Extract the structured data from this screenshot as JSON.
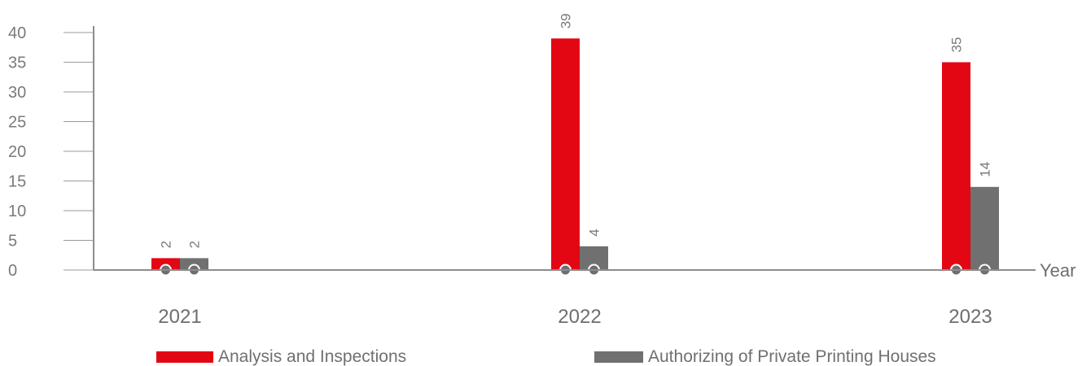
{
  "chart_data": {
    "type": "bar",
    "categories": [
      "2021",
      "2022",
      "2023"
    ],
    "series": [
      {
        "name": "Analysis and Inspections",
        "values": [
          2,
          39,
          35
        ],
        "color": "#e30613"
      },
      {
        "name": "Authorizing of Private Printing Houses",
        "values": [
          2,
          4,
          14
        ],
        "color": "#707070"
      }
    ],
    "xlabel": "Year",
    "ylabel": "",
    "ylim": [
      0,
      40
    ],
    "yticks": [
      0,
      5,
      10,
      15,
      20,
      25,
      30,
      35,
      40
    ],
    "data_labels": true,
    "legend_position": "bottom",
    "grid": false
  }
}
